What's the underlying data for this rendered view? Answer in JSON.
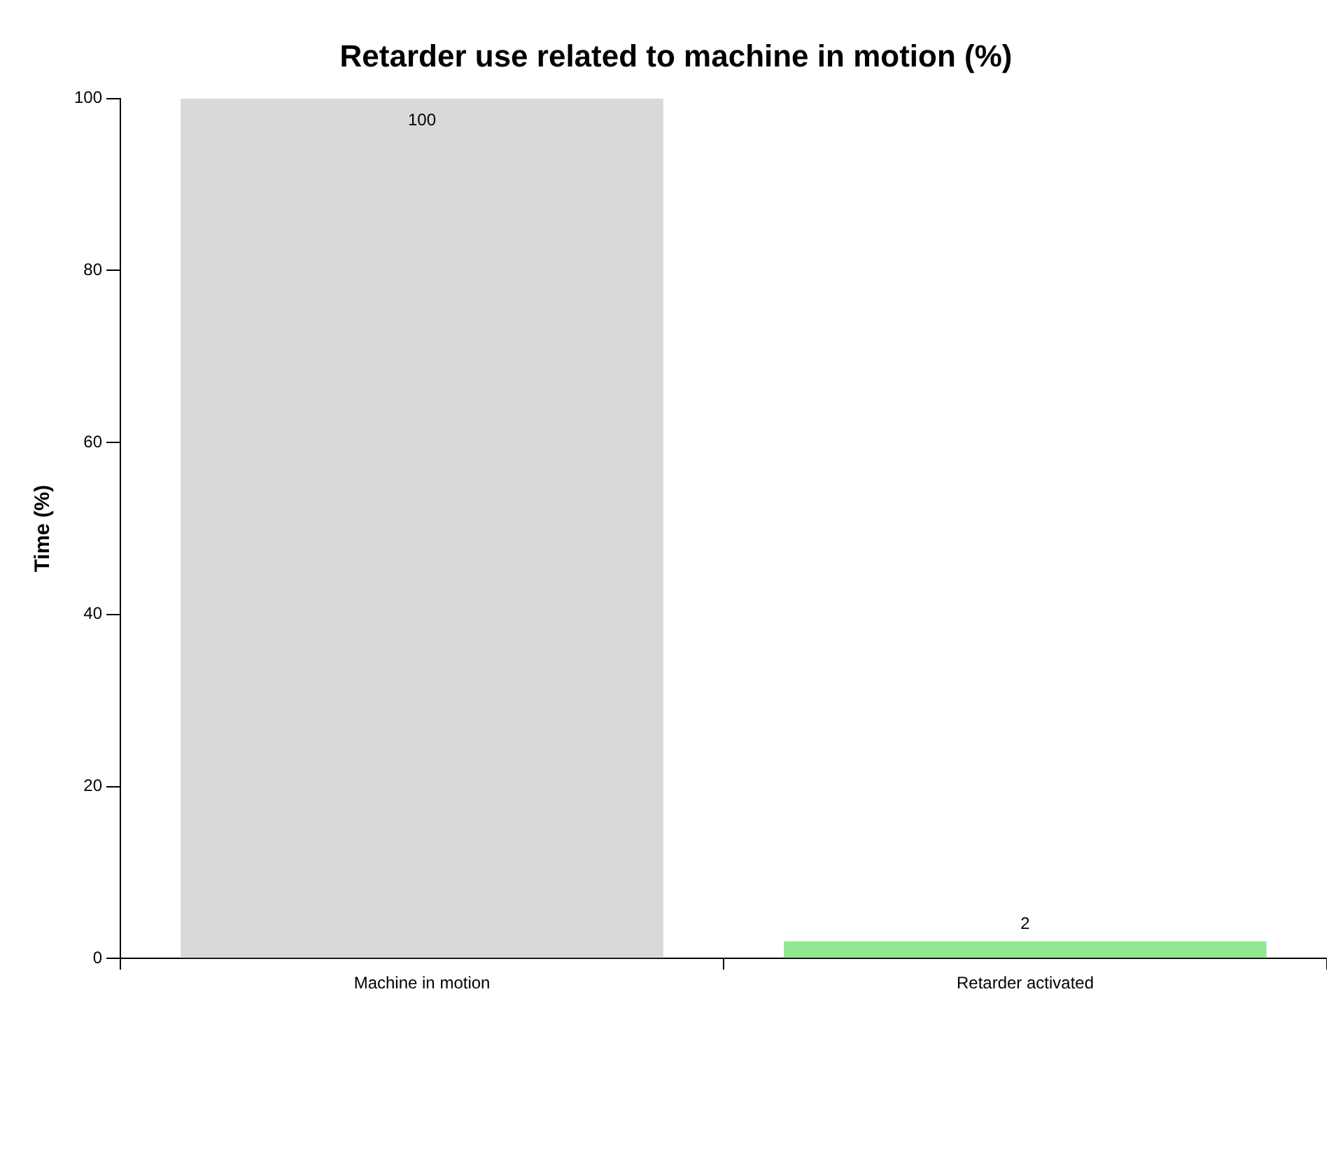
{
  "chart_data": {
    "type": "bar",
    "title": "Retarder use related to machine in motion (%)",
    "ylabel": "Time (%)",
    "categories": [
      "Machine in motion",
      "Retarder activated"
    ],
    "values": [
      100,
      2
    ],
    "colors": [
      "#d9d9d9",
      "#90e890"
    ],
    "ylim": [
      0,
      100
    ],
    "yticks": [
      0,
      20,
      40,
      60,
      80,
      100
    ],
    "grid": false,
    "legend": false,
    "data_labels": true
  }
}
